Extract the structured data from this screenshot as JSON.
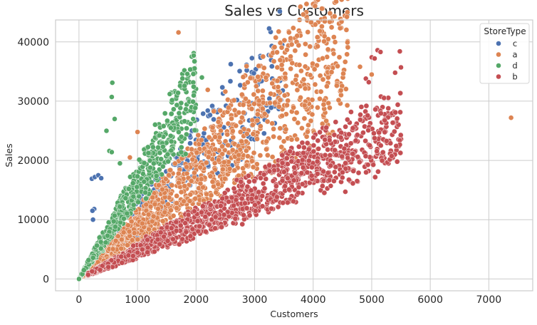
{
  "chart_data": {
    "type": "scatter",
    "title": "Sales vs Customers",
    "xlabel": "Customers",
    "ylabel": "Sales",
    "xlim": [
      -400,
      7750
    ],
    "ylim": [
      -2000,
      43700
    ],
    "xticks": [
      0,
      1000,
      2000,
      3000,
      4000,
      5000,
      6000,
      7000
    ],
    "yticks": [
      0,
      10000,
      20000,
      30000,
      40000
    ],
    "grid": true,
    "legend": {
      "title": "StoreType",
      "position": "upper right",
      "entries": [
        {
          "label": "c",
          "color": "#4c72b0"
        },
        {
          "label": "a",
          "color": "#dd8452"
        },
        {
          "label": "d",
          "color": "#55a868"
        },
        {
          "label": "b",
          "color": "#c44e52"
        }
      ]
    },
    "series": [
      {
        "name": "a",
        "color": "#dd8452",
        "description": "Broad middle band; sales/customer roughly 5-12; customers up to ~5000",
        "envelope": {
          "x_range": [
            50,
            4600
          ],
          "slope_low": 5.2,
          "slope_high": 12.5,
          "count": 1400
        },
        "points": [
          [
            1700,
            41600
          ],
          [
            4350,
            38000
          ],
          [
            7380,
            27200
          ],
          [
            3950,
            34400
          ],
          [
            3700,
            33600
          ],
          [
            3400,
            32400
          ],
          [
            2200,
            31900
          ],
          [
            2500,
            31600
          ],
          [
            1000,
            24800
          ],
          [
            870,
            20500
          ],
          [
            3300,
            33000
          ],
          [
            4800,
            35800
          ],
          [
            5000,
            34500
          ]
        ]
      },
      {
        "name": "b",
        "color": "#c44e52",
        "description": "Lower band; sales/customer roughly 3.3-6; customers up to ~5500",
        "envelope": {
          "x_range": [
            150,
            5500
          ],
          "slope_low": 3.3,
          "slope_high": 6.2,
          "count": 1400
        },
        "points": [
          [
            5100,
            38600
          ],
          [
            5150,
            38300
          ],
          [
            5480,
            38400
          ],
          [
            5000,
            37400
          ],
          [
            5050,
            37200
          ],
          [
            5500,
            35700
          ],
          [
            5400,
            34800
          ],
          [
            4900,
            33800
          ],
          [
            4950,
            33200
          ],
          [
            4200,
            23500
          ],
          [
            4500,
            17100
          ],
          [
            4550,
            14700
          ],
          [
            4300,
            15700
          ]
        ]
      },
      {
        "name": "c",
        "color": "#4c72b0",
        "description": "Mixed within band a, steeper slope ~8-14",
        "envelope": {
          "x_range": [
            100,
            3500
          ],
          "slope_low": 7.0,
          "slope_high": 14.0,
          "count": 350
        },
        "points": [
          [
            220,
            16900
          ],
          [
            270,
            17200
          ],
          [
            330,
            17500
          ],
          [
            380,
            17000
          ],
          [
            260,
            11800
          ],
          [
            230,
            11500
          ],
          [
            240,
            10000
          ],
          [
            3480,
            31800
          ],
          [
            3400,
            30900
          ],
          [
            2700,
            30200
          ],
          [
            2200,
            28400
          ],
          [
            1400,
            25700
          ]
        ]
      },
      {
        "name": "d",
        "color": "#55a868",
        "description": "Steepest band; sales/customer roughly 12-20; customers up to ~2100",
        "envelope": {
          "x_range": [
            0,
            2000
          ],
          "slope_low": 11.5,
          "slope_high": 20.0,
          "count": 600
        },
        "points": [
          [
            0,
            0
          ],
          [
            1960,
            38100
          ],
          [
            1960,
            37700
          ],
          [
            570,
            33100
          ],
          [
            560,
            30700
          ],
          [
            610,
            27000
          ],
          [
            470,
            25000
          ],
          [
            1800,
            35200
          ],
          [
            1850,
            34600
          ],
          [
            2100,
            34000
          ],
          [
            1550,
            31200
          ],
          [
            520,
            21600
          ],
          [
            560,
            21400
          ],
          [
            700,
            19500
          ],
          [
            1950,
            27000
          ]
        ]
      }
    ]
  }
}
